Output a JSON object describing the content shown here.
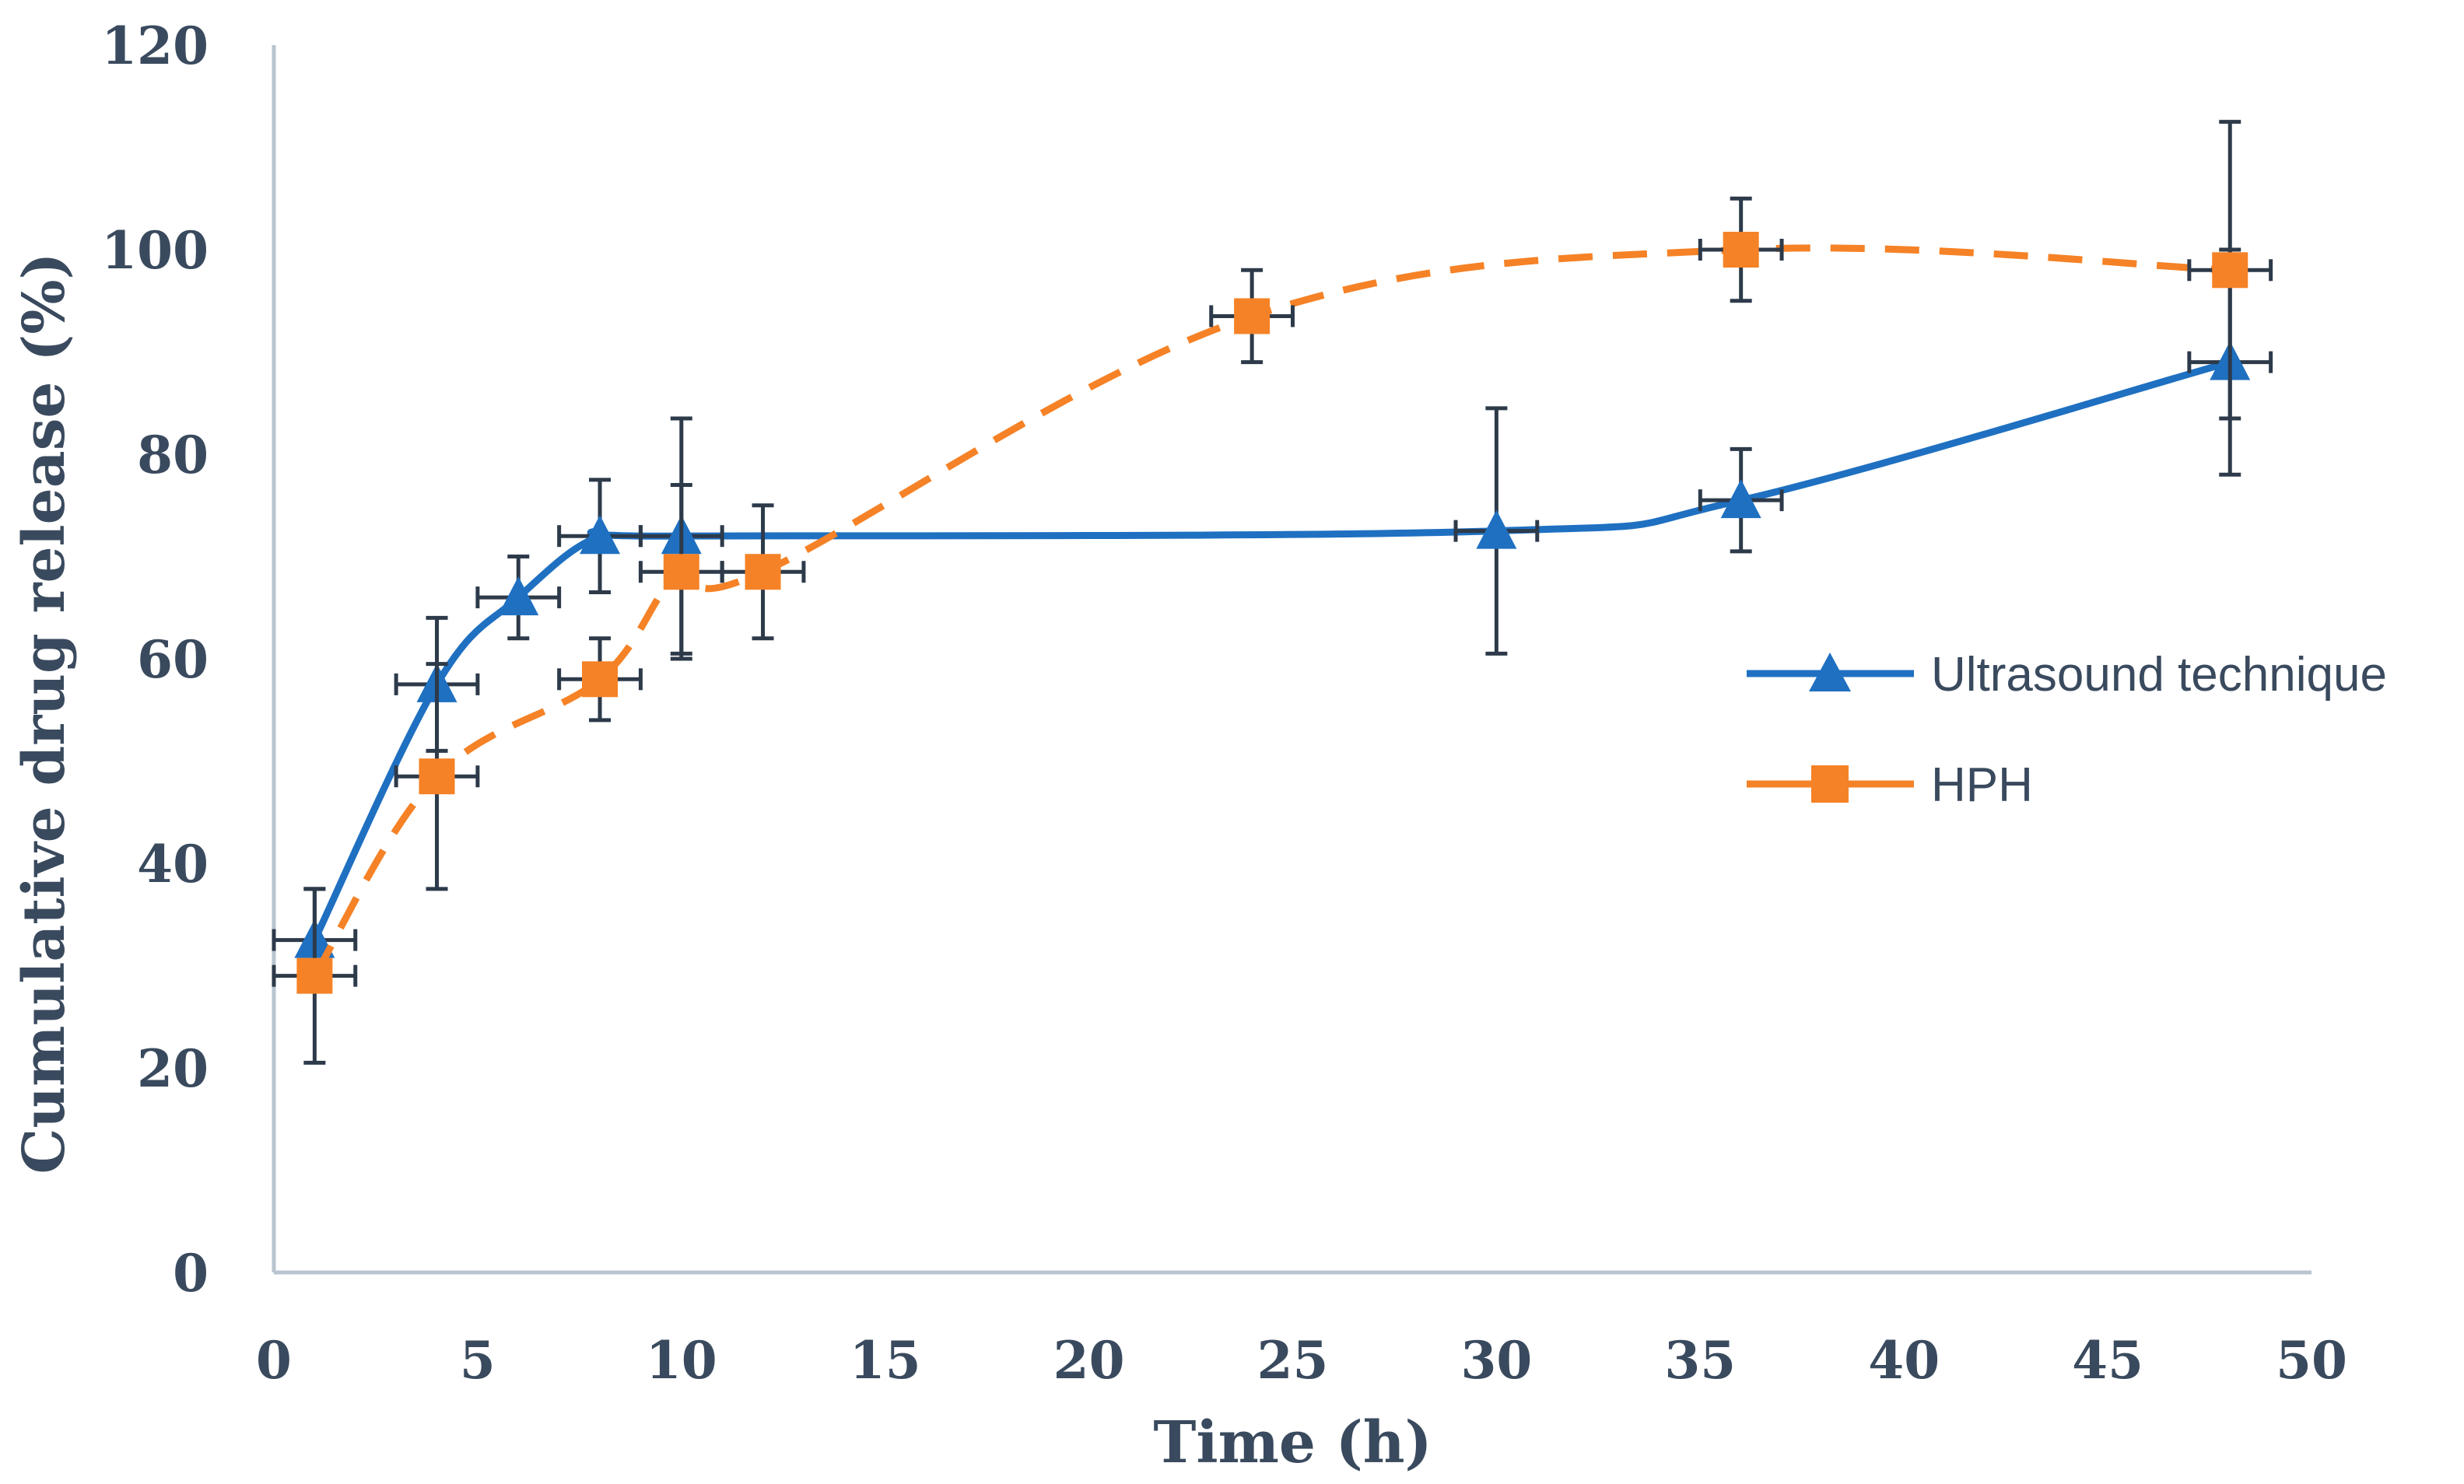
{
  "chart_data": {
    "type": "line",
    "title": "",
    "xlabel": "Time (h)",
    "ylabel": "Cumulative drug release (%)",
    "xlim": [
      0,
      50
    ],
    "ylim": [
      0,
      120
    ],
    "xticks": [
      "0",
      "5",
      "10",
      "15",
      "20",
      "25",
      "30",
      "35",
      "40",
      "45",
      "50"
    ],
    "yticks": [
      "0",
      "20",
      "40",
      "60",
      "80",
      "100",
      "120"
    ],
    "grid": false,
    "legend_position": "right",
    "series": [
      {
        "name": "Ultrasound technique",
        "color": "#1f70c1",
        "marker": "triangle",
        "line_style": "solid",
        "x": [
          1,
          4,
          6,
          8,
          10,
          30,
          36,
          48
        ],
        "y": [
          32.5,
          57.5,
          66,
          72,
          72,
          72.5,
          75.5,
          89
        ],
        "y_error": [
          5,
          6.5,
          4,
          5.5,
          11.5,
          12,
          5,
          11
        ],
        "x_error": [
          1,
          1,
          1,
          1,
          1,
          1,
          1,
          1
        ]
      },
      {
        "name": "HPH",
        "color": "#f58226",
        "marker": "square",
        "line_style": "dashed",
        "x": [
          1,
          4,
          8,
          10,
          12,
          24,
          36,
          48
        ],
        "y": [
          29,
          48.5,
          58,
          68.5,
          68.5,
          93.5,
          100,
          98
        ],
        "y_error": [
          8.5,
          11,
          4,
          8.5,
          6.5,
          4.5,
          5,
          14.5
        ],
        "x_error": [
          1,
          1,
          1,
          1,
          1,
          1,
          1,
          1
        ]
      }
    ]
  }
}
